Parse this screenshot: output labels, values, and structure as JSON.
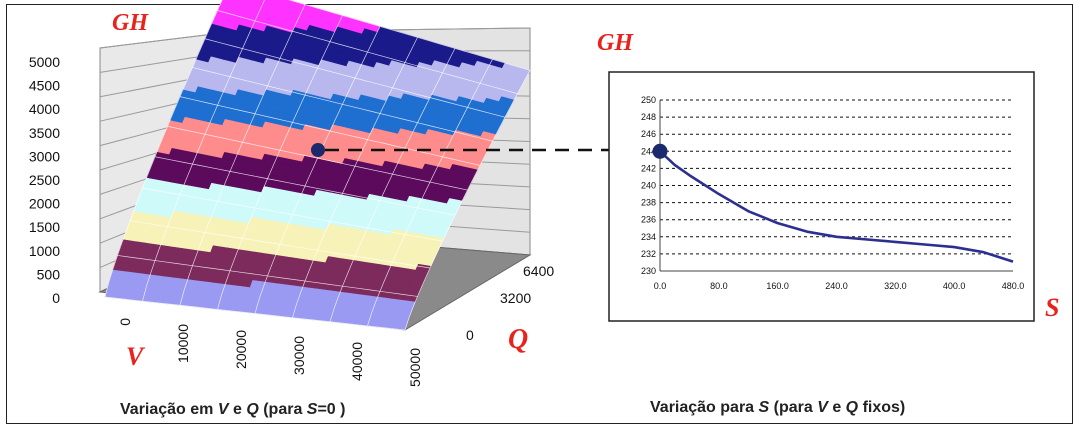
{
  "chart_data": [
    {
      "type": "surface",
      "zlabel": "GH",
      "xlabel": "V",
      "ylabel": "Q",
      "caption": {
        "prefix": "Variação em ",
        "v": "V",
        "mid": " e ",
        "q": "Q",
        "paren_open": "  (para ",
        "s": "S",
        "paren_close": "=0 )"
      },
      "z_ticks": [
        "0",
        "500",
        "1000",
        "1500",
        "2000",
        "2500",
        "3000",
        "3500",
        "4000",
        "4500",
        "5000"
      ],
      "v_ticks": [
        "0",
        "10000",
        "20000",
        "30000",
        "40000",
        "50000"
      ],
      "q_ticks": [
        "0",
        "3200",
        "6400"
      ],
      "band_colors": [
        "#9a9af2",
        "#7d2a5c",
        "#f7f3b8",
        "#cffafa",
        "#5c0a5c",
        "#ff8c8c",
        "#1f6fd1",
        "#b8b8ee",
        "#1a1a8a",
        "#ff33ff"
      ]
    },
    {
      "type": "line",
      "ylabel": "GH",
      "xlabel": "S",
      "caption": {
        "prefix": "Variação para ",
        "s": "S",
        "mid1": " (para ",
        "v": "V",
        "mid2": " e ",
        "q": "Q",
        "suffix": " fixos)"
      },
      "x_ticks": [
        "0.0",
        "80.0",
        "160.0",
        "240.0",
        "320.0",
        "400.0",
        "480.0"
      ],
      "y_ticks": [
        "230",
        "232",
        "234",
        "236",
        "238",
        "240",
        "242",
        "244",
        "246",
        "248",
        "250"
      ],
      "xlim": [
        0,
        480
      ],
      "ylim": [
        230,
        250
      ],
      "line_color": "#2b2f8f",
      "series": [
        {
          "x": [
            0,
            20,
            40,
            80,
            120,
            160,
            200,
            240,
            280,
            320,
            360,
            400,
            440,
            480
          ],
          "y": [
            244,
            242.4,
            241.2,
            239.0,
            237.0,
            235.6,
            234.6,
            234.0,
            233.7,
            233.4,
            233.1,
            232.8,
            232.2,
            231.1
          ]
        }
      ]
    }
  ]
}
